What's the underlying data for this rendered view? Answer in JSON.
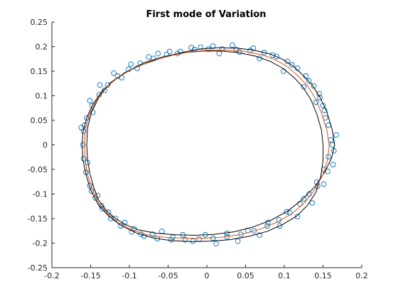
{
  "chart_data": {
    "type": "scatter",
    "title": "First mode of Variation",
    "xlabel": "",
    "ylabel": "",
    "xlim": [
      -0.2,
      0.2
    ],
    "ylim": [
      -0.25,
      0.25
    ],
    "x_ticks": [
      "-0.2",
      "-0.15",
      "-0.1",
      "-0.05",
      "0",
      "0.05",
      "0.1",
      "0.15",
      "0.2"
    ],
    "y_ticks": [
      "0.25",
      "0.2",
      "0.15",
      "0.1",
      "0.05",
      "0",
      "-0.05",
      "-0.1",
      "-0.15",
      "-0.2",
      "-0.25"
    ],
    "grid": false,
    "legend": "none",
    "colors": {
      "scatter": "#0072BD",
      "mean_shape": "#D95319",
      "mode_bounds": "#000000",
      "axes": "#262626"
    },
    "mean_shape": {
      "x": [
        0.158,
        0.155,
        0.148,
        0.14,
        0.13,
        0.118,
        0.105,
        0.09,
        0.072,
        0.05,
        0.028,
        0.005,
        -0.02,
        -0.045,
        -0.07,
        -0.092,
        -0.112,
        -0.13,
        -0.143,
        -0.152,
        -0.157,
        -0.158,
        -0.157,
        -0.154,
        -0.148,
        -0.14,
        -0.128,
        -0.115,
        -0.098,
        -0.078,
        -0.055,
        -0.03,
        -0.005,
        0.02,
        0.045,
        0.068,
        0.09,
        0.11,
        0.126,
        0.14,
        0.15,
        0.156,
        0.158
      ],
      "y": [
        0.0,
        0.03,
        0.065,
        0.095,
        0.12,
        0.14,
        0.158,
        0.172,
        0.183,
        0.19,
        0.193,
        0.193,
        0.19,
        0.182,
        0.172,
        0.158,
        0.14,
        0.118,
        0.09,
        0.06,
        0.03,
        0.0,
        -0.03,
        -0.06,
        -0.09,
        -0.118,
        -0.14,
        -0.158,
        -0.172,
        -0.183,
        -0.188,
        -0.19,
        -0.19,
        -0.188,
        -0.182,
        -0.172,
        -0.158,
        -0.14,
        -0.118,
        -0.09,
        -0.06,
        -0.03,
        0.0
      ]
    },
    "mode_bounds": [
      {
        "x": [
          0.15,
          0.148,
          0.142,
          0.134,
          0.124,
          0.112,
          0.098,
          0.082,
          0.062,
          0.04,
          0.018,
          -0.005,
          -0.03,
          -0.055,
          -0.08,
          -0.1,
          -0.118,
          -0.135,
          -0.147,
          -0.155,
          -0.16,
          -0.161,
          -0.16,
          -0.156,
          -0.15,
          -0.14,
          -0.126,
          -0.11,
          -0.09,
          -0.068,
          -0.045,
          -0.02,
          0.005,
          0.03,
          0.055,
          0.078,
          0.098,
          0.116,
          0.13,
          0.141,
          0.147,
          0.15,
          0.15
        ],
        "y": [
          0.0,
          0.03,
          0.063,
          0.093,
          0.118,
          0.138,
          0.156,
          0.17,
          0.181,
          0.188,
          0.191,
          0.191,
          0.188,
          0.18,
          0.168,
          0.152,
          0.133,
          0.11,
          0.083,
          0.055,
          0.025,
          0.0,
          -0.03,
          -0.06,
          -0.092,
          -0.122,
          -0.146,
          -0.165,
          -0.18,
          -0.19,
          -0.195,
          -0.197,
          -0.196,
          -0.193,
          -0.186,
          -0.176,
          -0.162,
          -0.145,
          -0.123,
          -0.096,
          -0.065,
          -0.033,
          0.0
        ]
      },
      {
        "x": [
          0.165,
          0.162,
          0.155,
          0.146,
          0.136,
          0.124,
          0.112,
          0.098,
          0.082,
          0.06,
          0.038,
          0.015,
          -0.01,
          -0.035,
          -0.06,
          -0.084,
          -0.106,
          -0.125,
          -0.139,
          -0.149,
          -0.154,
          -0.155,
          -0.154,
          -0.151,
          -0.146,
          -0.14,
          -0.13,
          -0.118,
          -0.104,
          -0.088,
          -0.065,
          -0.04,
          -0.015,
          0.01,
          0.035,
          0.058,
          0.082,
          0.104,
          0.122,
          0.139,
          0.152,
          0.161,
          0.165
        ],
        "y": [
          0.0,
          0.03,
          0.067,
          0.097,
          0.122,
          0.142,
          0.16,
          0.174,
          0.185,
          0.193,
          0.197,
          0.198,
          0.195,
          0.187,
          0.176,
          0.163,
          0.147,
          0.126,
          0.098,
          0.066,
          0.034,
          0.0,
          -0.03,
          -0.058,
          -0.086,
          -0.112,
          -0.133,
          -0.15,
          -0.163,
          -0.173,
          -0.18,
          -0.183,
          -0.184,
          -0.182,
          -0.177,
          -0.168,
          -0.154,
          -0.135,
          -0.113,
          -0.086,
          -0.056,
          -0.027,
          0.0
        ]
      }
    ],
    "scatter_points": {
      "x": [
        0.16,
        0.157,
        0.152,
        0.146,
        0.138,
        0.128,
        0.117,
        0.104,
        0.09,
        0.074,
        0.056,
        0.038,
        0.02,
        0.002,
        -0.016,
        -0.034,
        -0.052,
        -0.069,
        -0.086,
        -0.101,
        -0.115,
        -0.128,
        -0.139,
        -0.148,
        -0.155,
        -0.159,
        -0.16,
        -0.159,
        -0.156,
        -0.151,
        -0.144,
        -0.135,
        -0.124,
        -0.111,
        -0.097,
        -0.081,
        -0.064,
        -0.046,
        -0.028,
        -0.01,
        0.008,
        0.026,
        0.044,
        0.061,
        0.078,
        0.093,
        0.107,
        0.12,
        0.132,
        0.142,
        0.151,
        0.157,
        0.162,
        0.15,
        0.145,
        0.132,
        0.11,
        0.085,
        0.06,
        0.033,
        0.008,
        -0.02,
        -0.048,
        -0.075,
        -0.098,
        -0.12,
        -0.138,
        -0.151,
        -0.158,
        -0.149,
        -0.136,
        -0.118,
        -0.094,
        -0.07,
        -0.044,
        -0.018,
        0.012,
        0.04,
        0.068,
        0.094,
        0.117,
        0.136,
        0.151,
        0.163,
        0.167,
        0.153,
        0.141,
        0.125,
        0.099,
        0.068,
        0.042,
        0.016,
        -0.008,
        -0.038,
        -0.063,
        -0.09,
        -0.11,
        -0.132,
        -0.147,
        -0.162,
        -0.154,
        -0.141,
        -0.127,
        -0.106,
        -0.085,
        -0.058,
        -0.031,
        -0.002,
        0.026,
        0.053,
        0.079,
        0.103,
        0.125,
        0.143,
        0.156,
        0.164
      ],
      "y": [
        0.01,
        0.04,
        0.07,
        0.096,
        0.12,
        0.14,
        0.156,
        0.17,
        0.18,
        0.188,
        0.192,
        0.194,
        0.195,
        0.195,
        0.194,
        0.19,
        0.184,
        0.176,
        0.166,
        0.154,
        0.14,
        0.122,
        0.102,
        0.08,
        0.055,
        0.028,
        0.0,
        -0.028,
        -0.056,
        -0.083,
        -0.108,
        -0.13,
        -0.15,
        -0.165,
        -0.177,
        -0.186,
        -0.191,
        -0.193,
        -0.193,
        -0.192,
        -0.19,
        -0.187,
        -0.182,
        -0.175,
        -0.165,
        -0.153,
        -0.138,
        -0.12,
        -0.1,
        -0.076,
        -0.05,
        -0.024,
        0.0,
        0.08,
        0.104,
        0.13,
        0.163,
        0.183,
        0.197,
        0.203,
        0.201,
        0.198,
        0.19,
        0.179,
        0.164,
        0.146,
        0.122,
        0.09,
        0.04,
        -0.094,
        -0.124,
        -0.15,
        -0.171,
        -0.182,
        -0.188,
        -0.196,
        -0.201,
        -0.196,
        -0.184,
        -0.165,
        -0.146,
        -0.118,
        -0.08,
        -0.04,
        0.02,
        0.055,
        0.087,
        0.118,
        0.15,
        0.176,
        0.189,
        0.186,
        0.199,
        0.186,
        0.186,
        0.156,
        0.137,
        0.111,
        0.066,
        0.035,
        -0.036,
        -0.103,
        -0.137,
        -0.158,
        -0.182,
        -0.176,
        -0.183,
        -0.183,
        -0.18,
        -0.174,
        -0.158,
        -0.136,
        -0.11,
        -0.084,
        -0.054,
        -0.012
      ]
    }
  }
}
